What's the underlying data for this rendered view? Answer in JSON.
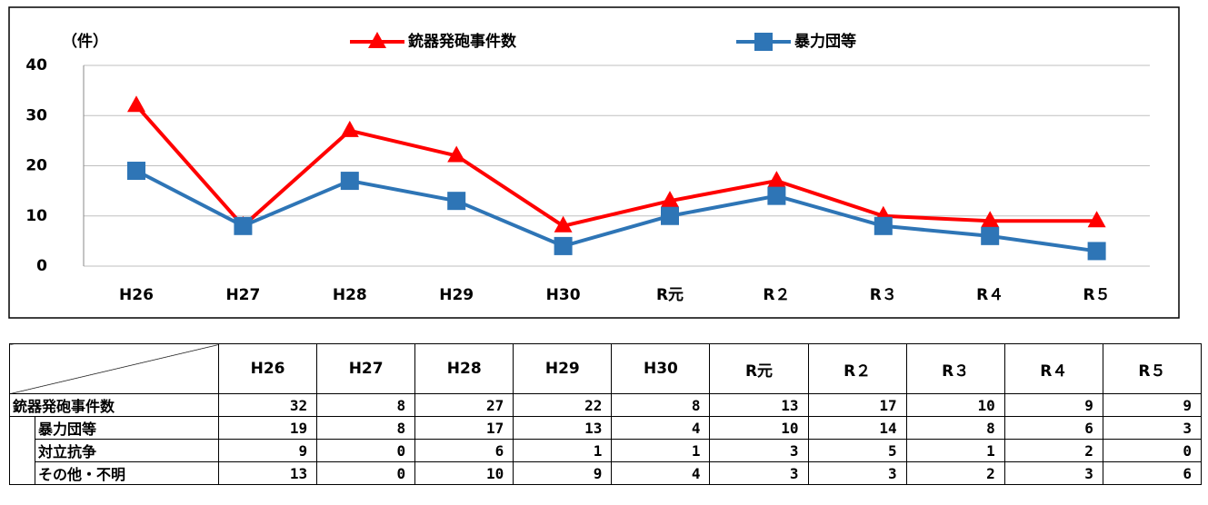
{
  "chart_data": {
    "type": "line",
    "y_label": "（件）",
    "categories": [
      "H26",
      "H27",
      "H28",
      "H29",
      "H30",
      "R元",
      "R２",
      "R３",
      "R４",
      "R５"
    ],
    "series": [
      {
        "name": "銃器発砲事件数",
        "color": "#ff0000",
        "marker": "triangle",
        "values": [
          32,
          8,
          27,
          22,
          8,
          13,
          17,
          10,
          9,
          9
        ]
      },
      {
        "name": "暴力団等",
        "color": "#2e75b6",
        "marker": "square",
        "values": [
          19,
          8,
          17,
          13,
          4,
          10,
          14,
          8,
          6,
          3
        ]
      }
    ],
    "ylim": [
      0,
      40
    ],
    "yticks": [
      0,
      10,
      20,
      30,
      40
    ],
    "grid": true,
    "legend": "top"
  },
  "table": {
    "rows": [
      {
        "label": "対立抗争",
        "values": [
          9,
          0,
          6,
          1,
          1,
          3,
          5,
          1,
          2,
          0
        ]
      },
      {
        "label": "その他・不明",
        "values": [
          13,
          0,
          10,
          9,
          4,
          3,
          3,
          2,
          3,
          6
        ]
      }
    ]
  }
}
